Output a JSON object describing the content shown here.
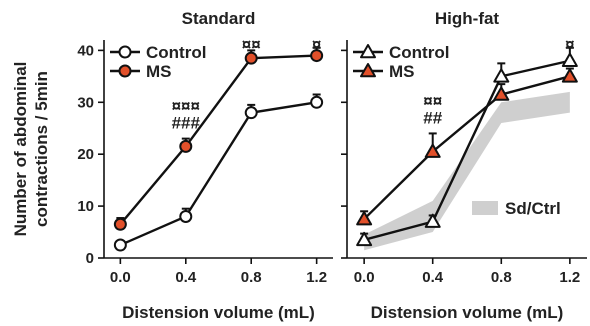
{
  "colors": {
    "ms": "#e2502a",
    "control": "#ffffff",
    "stroke": "#111111",
    "band": "#cfcfcf"
  },
  "chart_data": [
    {
      "type": "line",
      "title": "Standard",
      "xlabel": "Distension volume (mL)",
      "ylabel": "Number of abdominal contractions / 5min",
      "x": [
        0.0,
        0.4,
        0.8,
        1.2
      ],
      "x_tick_labels": [
        "0.0",
        "0.4",
        "0.8",
        "1.2"
      ],
      "y_ticks": [
        0,
        10,
        20,
        30,
        40
      ],
      "ylim": [
        0,
        42
      ],
      "legend_position": "top-left",
      "series": [
        {
          "name": "Control",
          "marker": "circle",
          "values": [
            2.5,
            8,
            28,
            30
          ],
          "errors": [
            0.7,
            1.5,
            1.5,
            1.5
          ]
        },
        {
          "name": "MS",
          "marker": "circle",
          "values": [
            6.5,
            21.5,
            38.5,
            39
          ],
          "errors": [
            1.2,
            1.5,
            1.5,
            1.5
          ]
        }
      ],
      "annotations": [
        {
          "x": 0.4,
          "rows": [
            "¤¤¤",
            "###"
          ]
        },
        {
          "x": 0.8,
          "rows": [
            "¤¤"
          ]
        },
        {
          "x": 1.2,
          "rows": [
            "¤"
          ]
        }
      ]
    },
    {
      "type": "line",
      "title": "High-fat",
      "xlabel": "Distension volume (mL)",
      "x": [
        0.0,
        0.4,
        0.8,
        1.2
      ],
      "x_tick_labels": [
        "0.0",
        "0.4",
        "0.8",
        "1.2"
      ],
      "ylim": [
        0,
        42
      ],
      "legend_position": "top-left",
      "series": [
        {
          "name": "Control",
          "marker": "triangle",
          "values": [
            3.5,
            7,
            35,
            38
          ],
          "errors": [
            1.2,
            1.2,
            2.5,
            2.5
          ]
        },
        {
          "name": "MS",
          "marker": "triangle",
          "values": [
            7.5,
            20.5,
            31.5,
            35
          ],
          "errors": [
            1.5,
            3.5,
            2.0,
            1.5
          ]
        }
      ],
      "band": {
        "name": "Sd/Ctrl",
        "lower": [
          1.5,
          5,
          26,
          28
        ],
        "upper": [
          4.5,
          11,
          30,
          32
        ]
      },
      "annotations": [
        {
          "x": 0.4,
          "rows": [
            "¤¤",
            "##"
          ]
        },
        {
          "x": 1.2,
          "rows": [
            "¤"
          ]
        }
      ]
    }
  ]
}
